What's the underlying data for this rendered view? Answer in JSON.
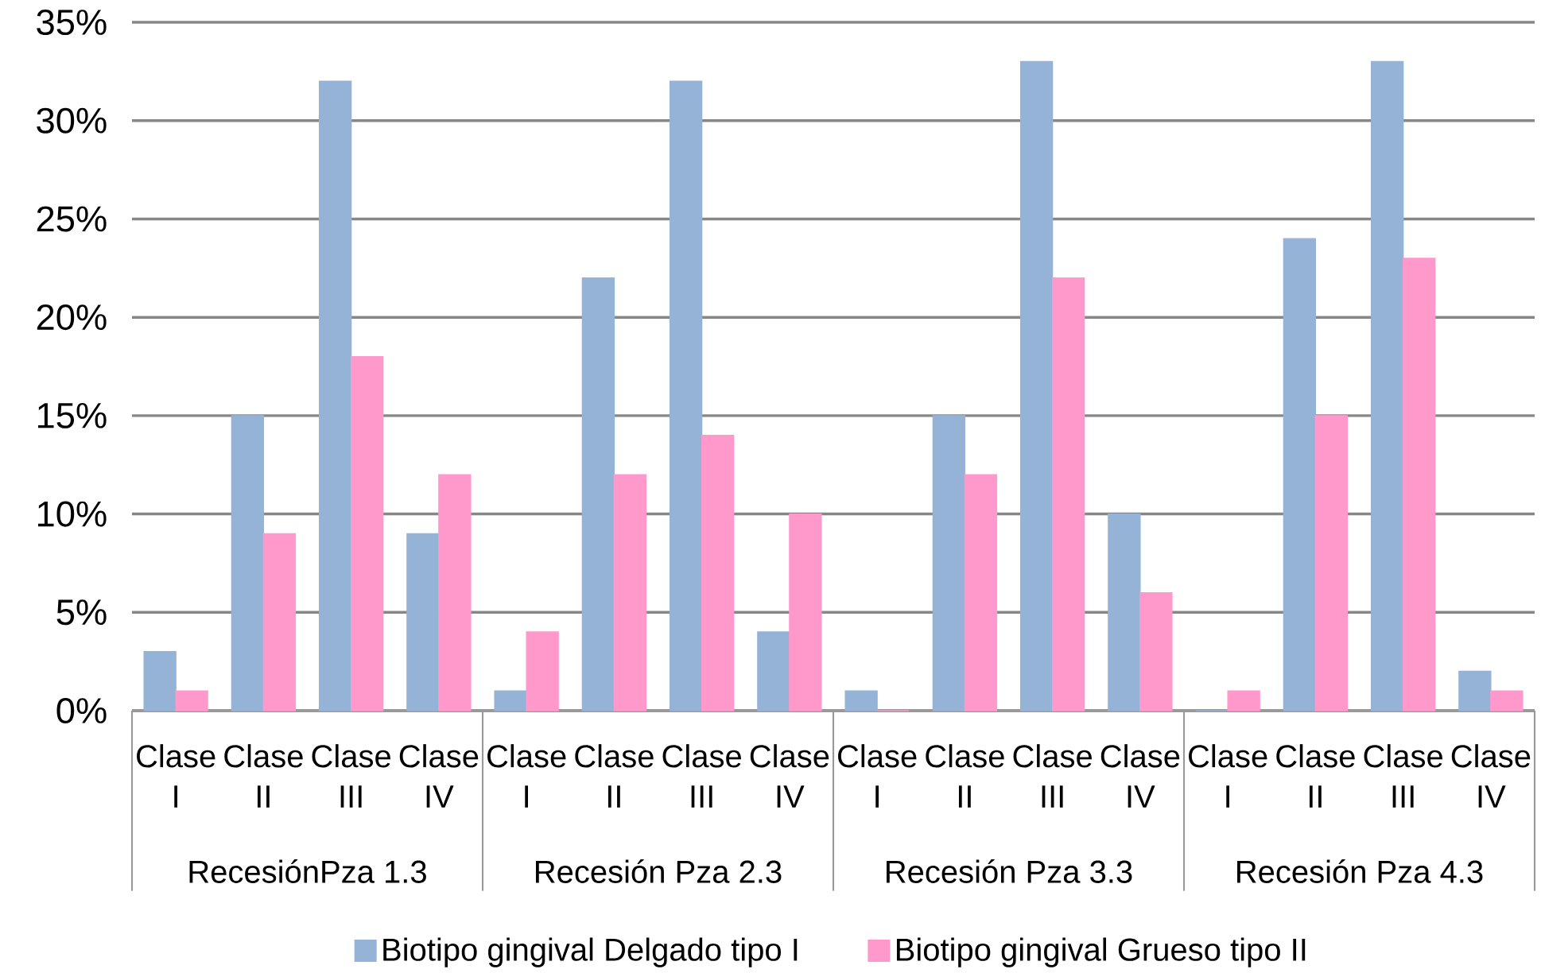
{
  "chart_data": {
    "type": "bar",
    "categories": [
      "Clase I",
      "Clase II",
      "Clase III",
      "Clase IV",
      "Clase I",
      "Clase II",
      "Clase III",
      "Clase IV",
      "Clase I",
      "Clase II",
      "Clase III",
      "Clase IV",
      "Clase I",
      "Clase II",
      "Clase III",
      "Clase IV"
    ],
    "series": [
      {
        "name": "Biotipo gingival Delgado tipo I",
        "color": "#95b3d7",
        "values": [
          3,
          15,
          32,
          9,
          1,
          22,
          32,
          4,
          1,
          15,
          33,
          10,
          0,
          24,
          33,
          2
        ]
      },
      {
        "name": "Biotipo gingival Grueso tipo II",
        "color": "#ff99cc",
        "values": [
          1,
          9,
          18,
          12,
          4,
          12,
          14,
          10,
          0,
          12,
          22,
          6,
          1,
          15,
          23,
          1
        ]
      }
    ],
    "ylim": [
      0,
      35
    ],
    "yticks": [
      {
        "value": 0,
        "label": "0%"
      },
      {
        "value": 5,
        "label": "5%"
      },
      {
        "value": 10,
        "label": "10%"
      },
      {
        "value": 15,
        "label": "15%"
      },
      {
        "value": 20,
        "label": "20%"
      },
      {
        "value": 25,
        "label": "25%"
      },
      {
        "value": 30,
        "label": "30%"
      },
      {
        "value": 35,
        "label": "35%"
      }
    ],
    "grid": "y",
    "legend": "bottom",
    "annotations": [
      "RecesiónPza 1.3",
      "Recesión Pza 2.3",
      "Recesión Pza 3.3",
      "Recesión Pza 4.3"
    ]
  }
}
